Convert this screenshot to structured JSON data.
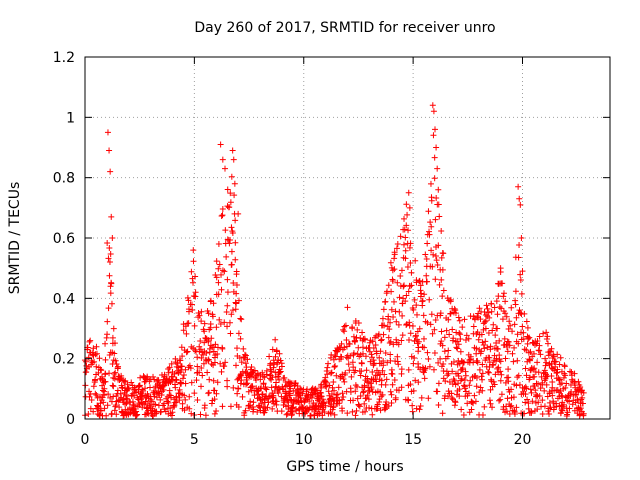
{
  "chart_data": {
    "type": "scatter",
    "title": "Day 260 of 2017, SRMTID for receiver unro",
    "xlabel": "GPS time / hours",
    "ylabel": "SRMTID / TECUs",
    "xlim": [
      0,
      24
    ],
    "ylim": [
      0,
      1.2
    ],
    "xticks": [
      0,
      5,
      10,
      15,
      20
    ],
    "xtick_labels": [
      "0",
      "5",
      "10",
      "15",
      "20"
    ],
    "yticks": [
      0,
      0.2,
      0.4,
      0.6,
      0.8,
      1,
      1.2
    ],
    "ytick_labels": [
      "0",
      "0.2",
      "0.4",
      "0.6",
      "0.8",
      "1",
      "1.2"
    ],
    "grid": true,
    "marker": "+",
    "series": [
      {
        "name": "SRMTID",
        "color": "#ff0000",
        "envelope": [
          [
            0.0,
            0.2
          ],
          [
            0.3,
            0.3
          ],
          [
            0.6,
            0.22
          ],
          [
            0.9,
            0.12
          ],
          [
            1.05,
            0.95
          ],
          [
            1.15,
            0.6
          ],
          [
            1.4,
            0.2
          ],
          [
            1.7,
            0.13
          ],
          [
            2.2,
            0.12
          ],
          [
            2.8,
            0.14
          ],
          [
            3.3,
            0.13
          ],
          [
            3.8,
            0.16
          ],
          [
            4.3,
            0.22
          ],
          [
            4.8,
            0.45
          ],
          [
            4.95,
            0.56
          ],
          [
            5.2,
            0.35
          ],
          [
            5.6,
            0.38
          ],
          [
            6.0,
            0.5
          ],
          [
            6.3,
            0.91
          ],
          [
            6.6,
            0.8
          ],
          [
            6.8,
            0.88
          ],
          [
            7.0,
            0.45
          ],
          [
            7.3,
            0.22
          ],
          [
            7.7,
            0.16
          ],
          [
            8.2,
            0.15
          ],
          [
            8.7,
            0.27
          ],
          [
            9.2,
            0.12
          ],
          [
            9.7,
            0.12
          ],
          [
            10.2,
            0.1
          ],
          [
            10.7,
            0.09
          ],
          [
            11.2,
            0.2
          ],
          [
            11.7,
            0.27
          ],
          [
            12.0,
            0.37
          ],
          [
            12.5,
            0.33
          ],
          [
            13.0,
            0.26
          ],
          [
            13.5,
            0.3
          ],
          [
            13.9,
            0.5
          ],
          [
            14.2,
            0.58
          ],
          [
            14.6,
            0.7
          ],
          [
            14.8,
            0.75
          ],
          [
            15.2,
            0.45
          ],
          [
            15.5,
            0.5
          ],
          [
            15.8,
            0.82
          ],
          [
            15.95,
            1.04
          ],
          [
            16.1,
            0.8
          ],
          [
            16.4,
            0.58
          ],
          [
            16.7,
            0.4
          ],
          [
            17.2,
            0.33
          ],
          [
            17.7,
            0.35
          ],
          [
            18.2,
            0.38
          ],
          [
            18.7,
            0.4
          ],
          [
            19.0,
            0.5
          ],
          [
            19.3,
            0.38
          ],
          [
            19.6,
            0.4
          ],
          [
            19.8,
            0.77
          ],
          [
            20.0,
            0.4
          ],
          [
            20.4,
            0.25
          ],
          [
            21.0,
            0.3
          ],
          [
            21.5,
            0.22
          ],
          [
            22.0,
            0.18
          ],
          [
            22.4,
            0.15
          ],
          [
            22.8,
            0.08
          ]
        ],
        "peaks": [
          [
            1.05,
            0.95
          ],
          [
            1.1,
            0.89
          ],
          [
            1.15,
            0.82
          ],
          [
            1.2,
            0.67
          ],
          [
            1.25,
            0.6
          ],
          [
            4.95,
            0.56
          ],
          [
            6.2,
            0.91
          ],
          [
            6.3,
            0.86
          ],
          [
            6.4,
            0.83
          ],
          [
            6.75,
            0.89
          ],
          [
            6.8,
            0.86
          ],
          [
            6.85,
            0.78
          ],
          [
            7.0,
            0.68
          ],
          [
            12.0,
            0.37
          ],
          [
            14.3,
            0.58
          ],
          [
            14.8,
            0.75
          ],
          [
            14.85,
            0.7
          ],
          [
            15.9,
            1.04
          ],
          [
            15.95,
            1.02
          ],
          [
            16.0,
            0.96
          ],
          [
            16.05,
            0.9
          ],
          [
            16.1,
            0.83
          ],
          [
            16.15,
            0.76
          ],
          [
            19.0,
            0.5
          ],
          [
            19.8,
            0.77
          ],
          [
            19.85,
            0.73
          ],
          [
            19.9,
            0.71
          ],
          [
            19.95,
            0.6
          ],
          [
            20.0,
            0.49
          ]
        ]
      }
    ]
  }
}
